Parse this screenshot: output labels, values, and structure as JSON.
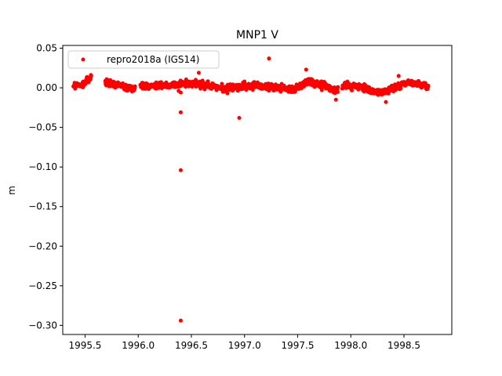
{
  "chart_data": {
    "type": "scatter",
    "title": "MNP1 V",
    "xlabel": "",
    "ylabel": "m",
    "xlim": [
      1995.29,
      1998.95
    ],
    "ylim": [
      -0.3115,
      0.0535
    ],
    "xticks": [
      1995.5,
      1996.0,
      1996.5,
      1997.0,
      1997.5,
      1998.0,
      1998.5
    ],
    "xtick_labels": [
      "1995.5",
      "1996.0",
      "1996.5",
      "1997.0",
      "1997.5",
      "1998.0",
      "1998.5"
    ],
    "yticks": [
      0.05,
      0.0,
      -0.05,
      -0.1,
      -0.15,
      -0.2,
      -0.25,
      -0.3
    ],
    "ytick_labels": [
      "0.05",
      "0.00",
      "−0.05",
      "−0.10",
      "−0.15",
      "−0.20",
      "−0.25",
      "−0.30"
    ],
    "grid": false,
    "legend_position": "top-left",
    "series": [
      {
        "name": "repro2018a (IGS14)",
        "color": "#ff0000",
        "marker": "circle",
        "segments": [
          {
            "x_start": 1995.39,
            "x_end": 1995.56,
            "trend": [
              [
                1995.39,
                0.003
              ],
              [
                1995.47,
                0.003
              ],
              [
                1995.56,
                0.014
              ]
            ],
            "spread": 0.005,
            "step": 0.0028
          },
          {
            "x_start": 1995.69,
            "x_end": 1995.97,
            "trend": [
              [
                1995.69,
                0.006
              ],
              [
                1995.8,
                0.004
              ],
              [
                1995.9,
                0.0
              ],
              [
                1995.97,
                -0.002
              ]
            ],
            "spread": 0.005,
            "step": 0.0028
          },
          {
            "x_start": 1996.02,
            "x_end": 1996.84,
            "trend": [
              [
                1996.02,
                0.003
              ],
              [
                1996.3,
                0.003
              ],
              [
                1996.5,
                0.006
              ],
              [
                1996.7,
                0.002
              ],
              [
                1996.84,
                -0.002
              ]
            ],
            "spread": 0.005,
            "step": 0.0028
          },
          {
            "x_start": 1996.84,
            "x_end": 1997.88,
            "trend": [
              [
                1996.84,
                0.001
              ],
              [
                1997.1,
                0.003
              ],
              [
                1997.3,
                0.0
              ],
              [
                1997.45,
                -0.003
              ],
              [
                1997.6,
                0.008
              ],
              [
                1997.75,
                0.002
              ],
              [
                1997.88,
                -0.004
              ]
            ],
            "spread": 0.005,
            "step": 0.0028
          },
          {
            "x_start": 1997.92,
            "x_end": 1998.73,
            "trend": [
              [
                1997.92,
                0.003
              ],
              [
                1998.1,
                0.001
              ],
              [
                1998.25,
                -0.006
              ],
              [
                1998.35,
                -0.004
              ],
              [
                1998.5,
                0.005
              ],
              [
                1998.62,
                0.006
              ],
              [
                1998.73,
                0.001
              ]
            ],
            "spread": 0.005,
            "step": 0.0028
          }
        ],
        "outliers": [
          {
            "x": 1996.4,
            "y": -0.031
          },
          {
            "x": 1996.4,
            "y": -0.104
          },
          {
            "x": 1996.4,
            "y": -0.294
          },
          {
            "x": 1996.95,
            "y": -0.038
          },
          {
            "x": 1997.23,
            "y": 0.037
          },
          {
            "x": 1997.58,
            "y": 0.023
          },
          {
            "x": 1996.4,
            "y": -0.006
          },
          {
            "x": 1996.38,
            "y": -0.004
          },
          {
            "x": 1996.57,
            "y": 0.019
          },
          {
            "x": 1996.84,
            "y": -0.007
          },
          {
            "x": 1998.33,
            "y": -0.018
          },
          {
            "x": 1998.45,
            "y": 0.015
          },
          {
            "x": 1997.86,
            "y": -0.015
          }
        ]
      }
    ]
  }
}
